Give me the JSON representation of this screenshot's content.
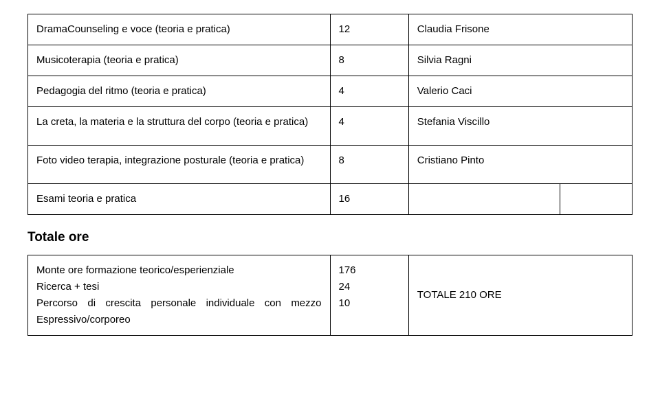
{
  "tables": {
    "first": {
      "rows": [
        {
          "label": "DramaCounseling e voce (teoria e pratica)",
          "num": "12",
          "name": "Claudia Frisone"
        },
        {
          "label": "Musicoterapia (teoria e pratica)",
          "num": "8",
          "name": "Silvia Ragni"
        },
        {
          "label": "Pedagogia del ritmo (teoria e pratica)",
          "num": "4",
          "name": "Valerio Caci"
        },
        {
          "label": "La creta, la materia e la struttura del corpo (teoria e pratica)",
          "num": "4",
          "name": "Stefania Viscillo"
        },
        {
          "label": "Foto video terapia, integrazione posturale (teoria e pratica)",
          "num": "8",
          "name": "Cristiano Pinto"
        },
        {
          "label": "Esami teoria e pratica",
          "num": "16",
          "name": ""
        }
      ]
    },
    "heading": "Totale ore",
    "second": {
      "row": {
        "lines": [
          "Monte ore formazione teorico/esperienziale",
          "Ricerca + tesi",
          "Percorso di crescita personale individuale con mezzo Espressivo/corporeo"
        ],
        "nums": [
          "176",
          "24",
          "10"
        ],
        "right": "TOTALE 210 ORE"
      }
    }
  },
  "style": {
    "font_family": "Arial, Helvetica, sans-serif",
    "font_size_body": 15,
    "font_size_heading": 19,
    "line_height": 1.6,
    "border_color": "#000000",
    "background": "#ffffff",
    "text_color": "#000000"
  }
}
